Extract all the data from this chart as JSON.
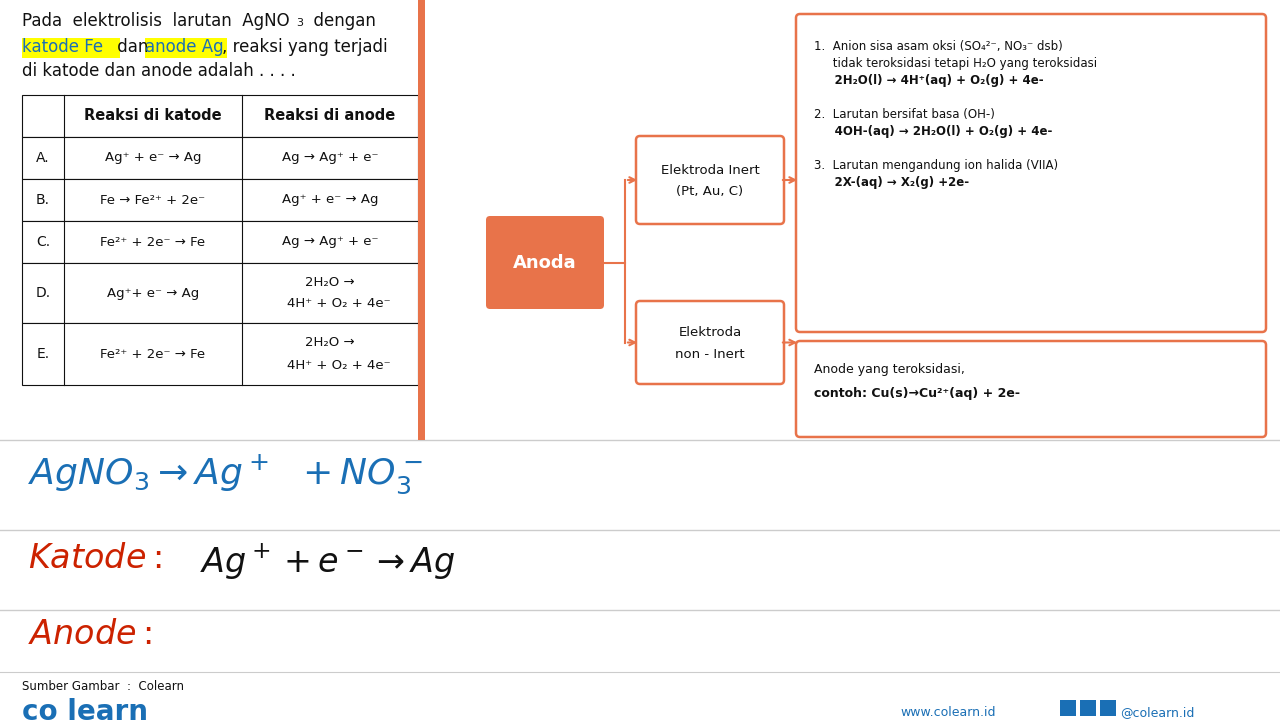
{
  "bg_color": "#ffffff",
  "orange_color": "#e8734a",
  "orange_light": "#f5b89a",
  "yellow_highlight": "#ffff00",
  "blue_text": "#1a6fb5",
  "red_text": "#cc2200",
  "gray_line": "#cccccc",
  "black": "#111111",
  "title_line1": "Pada  elektrolisis  larutan  AgNO",
  "title_sub3": "3",
  "title_line1b": " dengan",
  "title_line2_plain1": "katode Fe",
  "title_line2_mid": " dan ",
  "title_line2_plain2": "anode Ag",
  "title_line2_end": ", reaksi yang terjadi",
  "title_line3": "di katode dan anode adalah . . . .",
  "table_headers": [
    "",
    "Reaksi di katode",
    "Reaksi di anode"
  ],
  "table_rows": [
    [
      "A.",
      "Ag⁺ + e⁻ → Ag",
      "Ag → Ag⁺ + e⁻"
    ],
    [
      "B.",
      "Fe → Fe²⁺ + 2e⁻",
      "Ag⁺ + e⁻ → Ag"
    ],
    [
      "C.",
      "Fe²⁺ + 2e⁻ → Fe",
      "Ag → Ag⁺ + e⁻"
    ],
    [
      "D.",
      "Ag⁺+ e⁻ → Ag",
      "2H₂O →\n    4H⁺ + O₂ + 4e⁻"
    ],
    [
      "E.",
      "Fe²⁺ + 2e⁻ → Fe",
      "2H₂O →\n    4H⁺ + O₂ + 4e⁻"
    ]
  ],
  "anoda_label": "Anoda",
  "inert_label1": "Elektroda Inert",
  "inert_label2": "(Pt, Au, C)",
  "noninert_label1": "Elektroda",
  "noninert_label2": "non - Inert",
  "inert_rule1a": "1.  Anion sisa asam oksi (SO₄²⁻, NO₃⁻ dsb)",
  "inert_rule1b": "     tidak teroksidasi tetapi H₂O yang teroksidasi",
  "inert_rule1c": "     2H₂O(l) → 4H⁺(aq) + O₂(g) + 4e-",
  "inert_rule2a": "2.  Larutan bersifat basa (OH-)",
  "inert_rule2b": "     4OH-(aq) → 2H₂O(l) + O₂(g) + 4e-",
  "inert_rule3a": "3.  Larutan mengandung ion halida (VIIA)",
  "inert_rule3b": "     2X-(aq) → X₂(g) +2e-",
  "noninert_rule1": "Anode yang teroksidasi,",
  "noninert_rule2": "contoh: Cu(s)→Cu²⁺(aq) + 2e-",
  "formula1": "AgNO₃ → Ag⁺   + NO₃⁻",
  "katode_label": "Katode :",
  "katode_formula": "Ag⁺ + e⁻ → Ag",
  "anode_label": "Anode :",
  "source": "Sumber Gambar  :  Colearn",
  "footer_logo": "co learn",
  "footer_url": "www.colearn.id",
  "footer_social": "@colearn.id"
}
